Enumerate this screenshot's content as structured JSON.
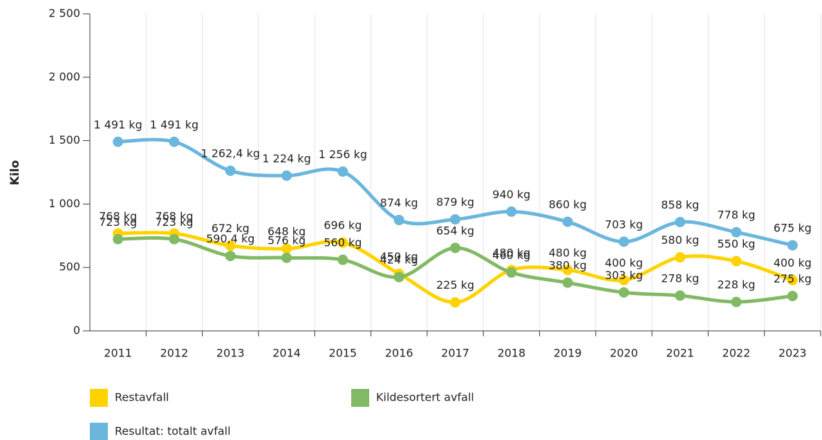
{
  "chart_data": {
    "type": "line",
    "y_label": "Kilo",
    "categories": [
      "2011",
      "2012",
      "2013",
      "2014",
      "2015",
      "2016",
      "2017",
      "2018",
      "2019",
      "2020",
      "2021",
      "2022",
      "2023"
    ],
    "ylim": [
      0,
      2500
    ],
    "yticks": [
      0,
      500,
      {
        "value": 1000,
        "label": "1 000"
      },
      {
        "value": 1500,
        "label": "1 500"
      },
      {
        "value": 2000,
        "label": "2 000"
      },
      {
        "value": 2500,
        "label": "2 500"
      }
    ],
    "series": [
      {
        "name": "Restavfall",
        "color": "#ffd200",
        "values": [
          768,
          768,
          672,
          648,
          696,
          450,
          225,
          480,
          480,
          400,
          580,
          550,
          400
        ],
        "value_labels": [
          "768 kg",
          "768 kg",
          "672 kg",
          "648 kg",
          "696 kg",
          "450 kg",
          "225 kg",
          "480 kg",
          "480 kg",
          "400 kg",
          "580 kg",
          "550 kg",
          "400 kg"
        ]
      },
      {
        "name": "Kildesortert avfall",
        "color": "#82b964",
        "values": [
          723,
          723,
          590.4,
          576,
          560,
          424,
          654,
          460,
          380,
          303,
          278,
          228,
          275
        ],
        "value_labels": [
          "723 kg",
          "723 kg",
          "590,4 kg",
          "576 kg",
          "560 kg",
          "424 kg",
          "654 kg",
          "460 kg",
          "380 kg",
          "303 kg",
          "278 kg",
          "228 kg",
          "275 kg"
        ]
      },
      {
        "name": "Resultat: totalt avfall",
        "color": "#6bb6dd",
        "values": [
          1491,
          1491,
          1262.4,
          1224,
          1256,
          874,
          879,
          940,
          860,
          703,
          858,
          778,
          675
        ],
        "value_labels": [
          "1 491 kg",
          "1 491 kg",
          "1 262,4 kg",
          "1 224 kg",
          "1 256 kg",
          "874 kg",
          "879 kg",
          "940 kg",
          "860 kg",
          "703 kg",
          "858 kg",
          "778 kg",
          "675 kg"
        ]
      }
    ]
  }
}
